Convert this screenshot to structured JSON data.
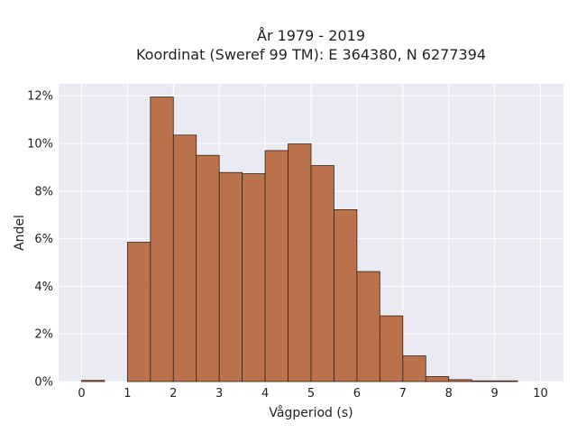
{
  "chart_data": {
    "type": "bar",
    "title_line1": "År 1979 - 2019",
    "title_line2": "Koordinat (Sweref 99 TM): E 364380, N 6277394",
    "xlabel": "Vågperiod (s)",
    "ylabel": "Andel",
    "xlim": [
      -0.5,
      10.5
    ],
    "ylim": [
      0,
      0.125
    ],
    "xticks": [
      0,
      1,
      2,
      3,
      4,
      5,
      6,
      7,
      8,
      9,
      10
    ],
    "yticks": [
      0,
      0.02,
      0.04,
      0.06,
      0.08,
      0.1,
      0.12
    ],
    "ytick_labels": [
      "0%",
      "2%",
      "4%",
      "6%",
      "8%",
      "10%",
      "12%"
    ],
    "bin_width": 0.5,
    "bin_starts": [
      0,
      0.5,
      1,
      1.5,
      2,
      2.5,
      3,
      3.5,
      4,
      4.5,
      5,
      5.5,
      6,
      6.5,
      7,
      7.5,
      8,
      8.5,
      9,
      9.5
    ],
    "values": [
      0.0005,
      0,
      0.0585,
      0.1195,
      0.1035,
      0.095,
      0.0878,
      0.0873,
      0.097,
      0.0998,
      0.0907,
      0.0722,
      0.0462,
      0.0276,
      0.0108,
      0.0021,
      0.0008,
      0.0003,
      0.0003,
      0
    ],
    "bar_color": "#b5653a",
    "plot_background": "#eaeaf2",
    "grid": true
  }
}
